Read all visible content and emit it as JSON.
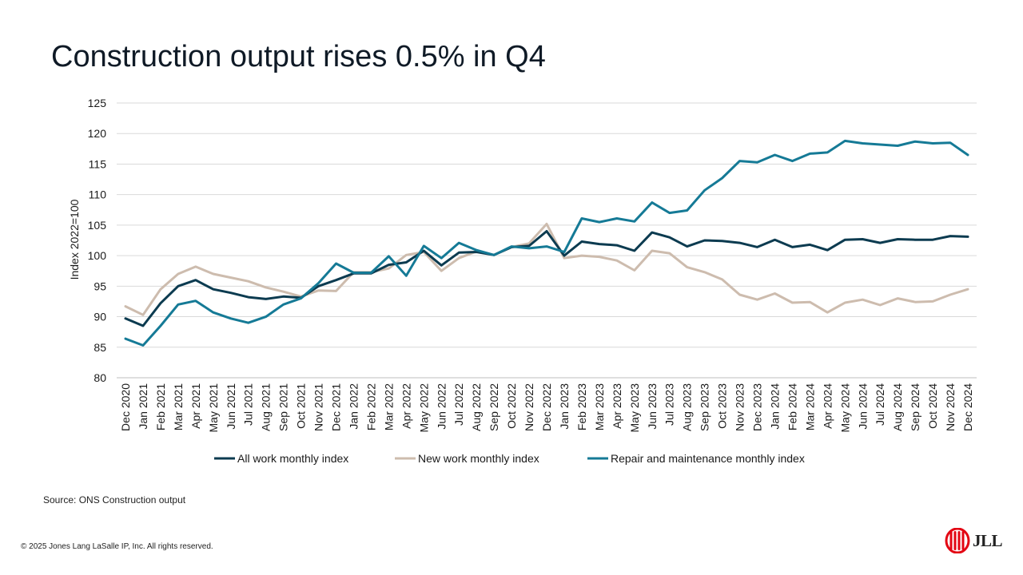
{
  "title": "Construction output rises 0.5% in Q4",
  "source": "Source: ONS Construction output",
  "copyright": "© 2025 Jones Lang LaSalle IP, Inc. All rights reserved.",
  "logo": {
    "text": "JLL",
    "icon": "jll-logo-icon",
    "color": "#e30613"
  },
  "chart_data": {
    "type": "line",
    "title": "",
    "xlabel": "",
    "ylabel": "Index 2022=100",
    "ylim": [
      80,
      125
    ],
    "yticks": [
      80,
      85,
      90,
      95,
      100,
      105,
      110,
      115,
      120,
      125
    ],
    "grid": true,
    "legend": "bottom",
    "categories": [
      "Dec 2020",
      "Jan 2021",
      "Feb 2021",
      "Mar 2021",
      "Apr 2021",
      "May 2021",
      "Jun 2021",
      "Jul 2021",
      "Aug 2021",
      "Sep 2021",
      "Oct 2021",
      "Nov 2021",
      "Dec 2021",
      "Jan 2022",
      "Feb 2022",
      "Mar 2022",
      "Apr 2022",
      "May 2022",
      "Jun 2022",
      "Jul 2022",
      "Aug 2022",
      "Sep 2022",
      "Oct 2022",
      "Nov 2022",
      "Dec 2022",
      "Jan 2023",
      "Feb 2023",
      "Mar 2023",
      "Apr 2023",
      "May 2023",
      "Jun 2023",
      "Jul 2023",
      "Aug 2023",
      "Sep 2023",
      "Oct 2023",
      "Nov 2023",
      "Dec 2023",
      "Jan 2024",
      "Feb 2024",
      "Mar 2024",
      "Apr 2024",
      "May 2024",
      "Jun 2024",
      "Jul 2024",
      "Aug 2024",
      "Sep 2024",
      "Oct 2024",
      "Nov 2024",
      "Dec 2024"
    ],
    "series": [
      {
        "name": "All work monthly index",
        "color": "#0c3b50",
        "values": [
          89.7,
          88.5,
          92.2,
          95.0,
          96.0,
          94.5,
          93.9,
          93.2,
          92.9,
          93.3,
          93.1,
          95.0,
          96.0,
          97.1,
          97.1,
          98.5,
          98.9,
          100.8,
          98.4,
          100.5,
          100.6,
          100.1,
          101.4,
          101.6,
          104.0,
          100.0,
          102.3,
          101.9,
          101.7,
          100.8,
          103.8,
          103.0,
          101.5,
          102.5,
          102.4,
          102.1,
          101.4,
          102.6,
          101.4,
          101.8,
          100.9,
          102.6,
          102.7,
          102.1,
          102.7,
          102.6,
          102.6,
          103.2,
          103.1
        ]
      },
      {
        "name": "New work monthly index",
        "color": "#cdbcae",
        "values": [
          91.7,
          90.3,
          94.5,
          97.0,
          98.2,
          97.0,
          96.4,
          95.8,
          94.8,
          94.1,
          93.3,
          94.3,
          94.2,
          97.3,
          97.3,
          97.9,
          100.1,
          100.6,
          97.5,
          99.6,
          100.7,
          100.1,
          101.4,
          102.0,
          105.2,
          99.6,
          100.0,
          99.8,
          99.2,
          97.6,
          100.8,
          100.4,
          98.1,
          97.3,
          96.1,
          93.6,
          92.8,
          93.8,
          92.3,
          92.4,
          90.7,
          92.3,
          92.8,
          91.9,
          93.0,
          92.4,
          92.5,
          93.6,
          94.5
        ]
      },
      {
        "name": "Repair and maintenance monthly index",
        "color": "#157a96",
        "values": [
          86.4,
          85.3,
          88.5,
          92.0,
          92.6,
          90.7,
          89.7,
          89.0,
          90.0,
          92.0,
          93.0,
          95.5,
          98.7,
          97.2,
          97.2,
          99.9,
          96.7,
          101.6,
          99.6,
          102.1,
          100.9,
          100.1,
          101.5,
          101.2,
          101.5,
          100.6,
          106.1,
          105.5,
          106.1,
          105.6,
          108.7,
          107.0,
          107.4,
          110.7,
          112.7,
          115.5,
          115.3,
          116.5,
          115.5,
          116.7,
          116.9,
          118.8,
          118.4,
          118.2,
          118.0,
          118.7,
          118.4,
          118.5,
          116.5
        ]
      }
    ]
  }
}
